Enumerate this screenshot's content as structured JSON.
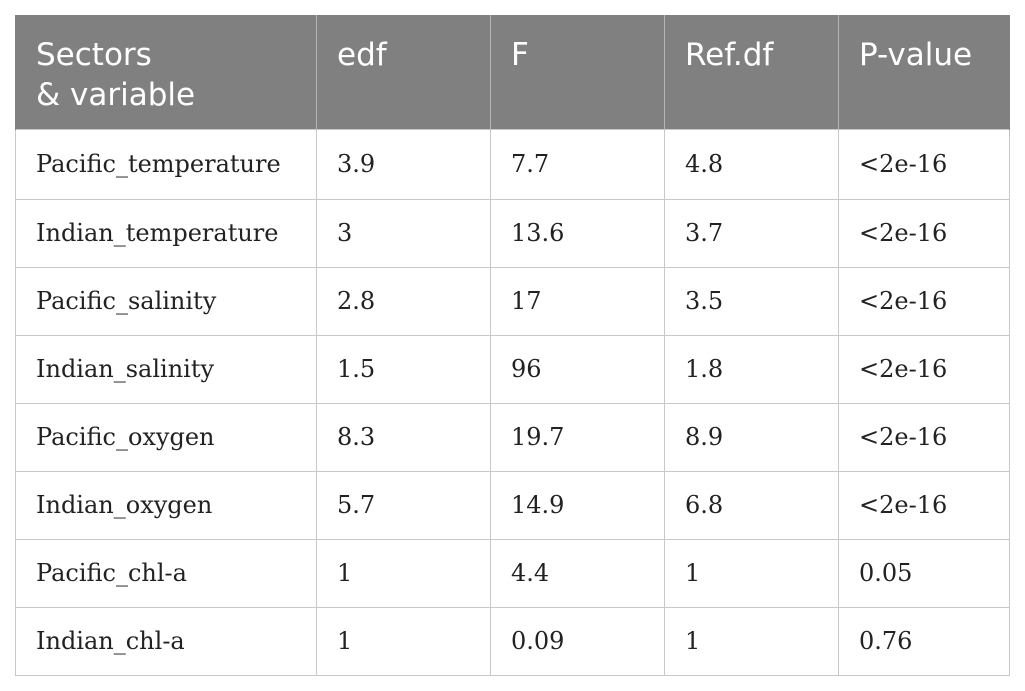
{
  "table": {
    "headers": [
      {
        "line1": "Sectors",
        "line2": "& variable"
      },
      {
        "line1": "edf",
        "line2": ""
      },
      {
        "line1": "F",
        "line2": ""
      },
      {
        "line1": "Ref.df",
        "line2": ""
      },
      {
        "line1": "P-value",
        "line2": ""
      }
    ],
    "rows": [
      [
        "Pacific_temperature",
        "3.9",
        "7.7",
        "4.8",
        "<2e-16"
      ],
      [
        "Indian_temperature",
        "3",
        "13.6",
        "3.7",
        "<2e-16"
      ],
      [
        "Pacific_salinity",
        "2.8",
        "17",
        "3.5",
        "<2e-16"
      ],
      [
        "Indian_salinity",
        "1.5",
        "96",
        "1.8",
        "<2e-16"
      ],
      [
        "Pacific_oxygen",
        "8.3",
        "19.7",
        "8.9",
        "<2e-16"
      ],
      [
        "Indian_oxygen",
        "5.7",
        "14.9",
        "6.8",
        "<2e-16"
      ],
      [
        "Pacific_chl-a",
        "1",
        "4.4",
        "1",
        "0.05"
      ],
      [
        "Indian_chl-a",
        "1",
        "0.09",
        "1",
        "0.76"
      ]
    ]
  }
}
